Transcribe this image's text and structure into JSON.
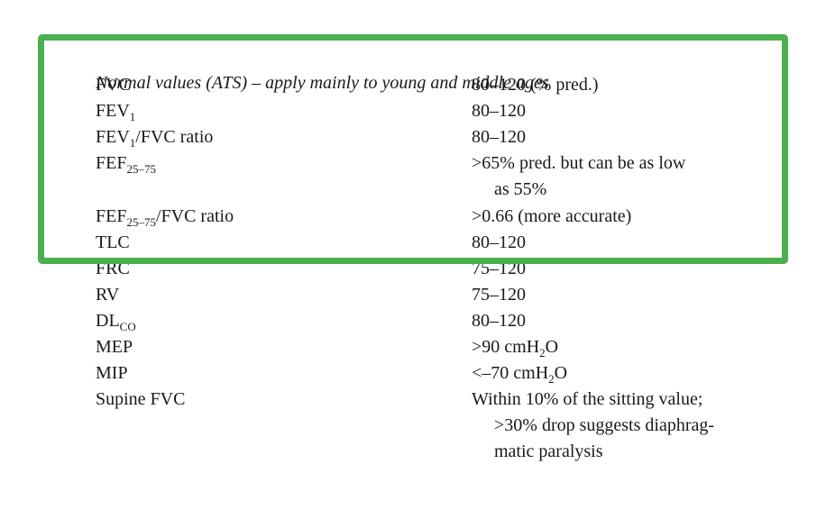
{
  "note": "Normal values (ATS) – apply mainly to young and middle ages",
  "rows": [
    {
      "label": [
        "FVC"
      ],
      "value": [
        [
          "80–120 (% pred.)"
        ]
      ]
    },
    {
      "label": [
        "FEV",
        "1"
      ],
      "value": [
        [
          "80–120"
        ]
      ]
    },
    {
      "label": [
        "FEV",
        "1",
        "/FVC ratio"
      ],
      "value": [
        [
          "80–120"
        ]
      ]
    },
    {
      "label": [
        "FEF",
        "25–75"
      ],
      "value": [
        [
          ">65% pred. but can be as low"
        ],
        [
          "as 55%"
        ]
      ]
    },
    {
      "label": [
        "FEF",
        "25–75",
        "/FVC ratio"
      ],
      "value": [
        [
          ">0.66 (more accurate)"
        ]
      ]
    },
    {
      "label": [
        "TLC"
      ],
      "value": [
        [
          "80–120"
        ]
      ]
    },
    {
      "label": [
        "FRC"
      ],
      "value": [
        [
          "75–120"
        ]
      ]
    },
    {
      "label": [
        "RV"
      ],
      "value": [
        [
          "75–120"
        ]
      ]
    },
    {
      "label": [
        "DL",
        "CO"
      ],
      "value": [
        [
          "80–120"
        ]
      ]
    },
    {
      "label": [
        "MEP"
      ],
      "value": [
        [
          ">90 cmH",
          "2",
          "O"
        ]
      ]
    },
    {
      "label": [
        "MIP"
      ],
      "value": [
        [
          "<–70 cmH",
          "2",
          "O"
        ]
      ]
    },
    {
      "label": [
        "Supine FVC"
      ],
      "value": [
        [
          "Within 10% of the sitting value;"
        ],
        [
          ">30% drop suggests diaphrag-"
        ],
        [
          "matic paralysis"
        ]
      ]
    }
  ]
}
